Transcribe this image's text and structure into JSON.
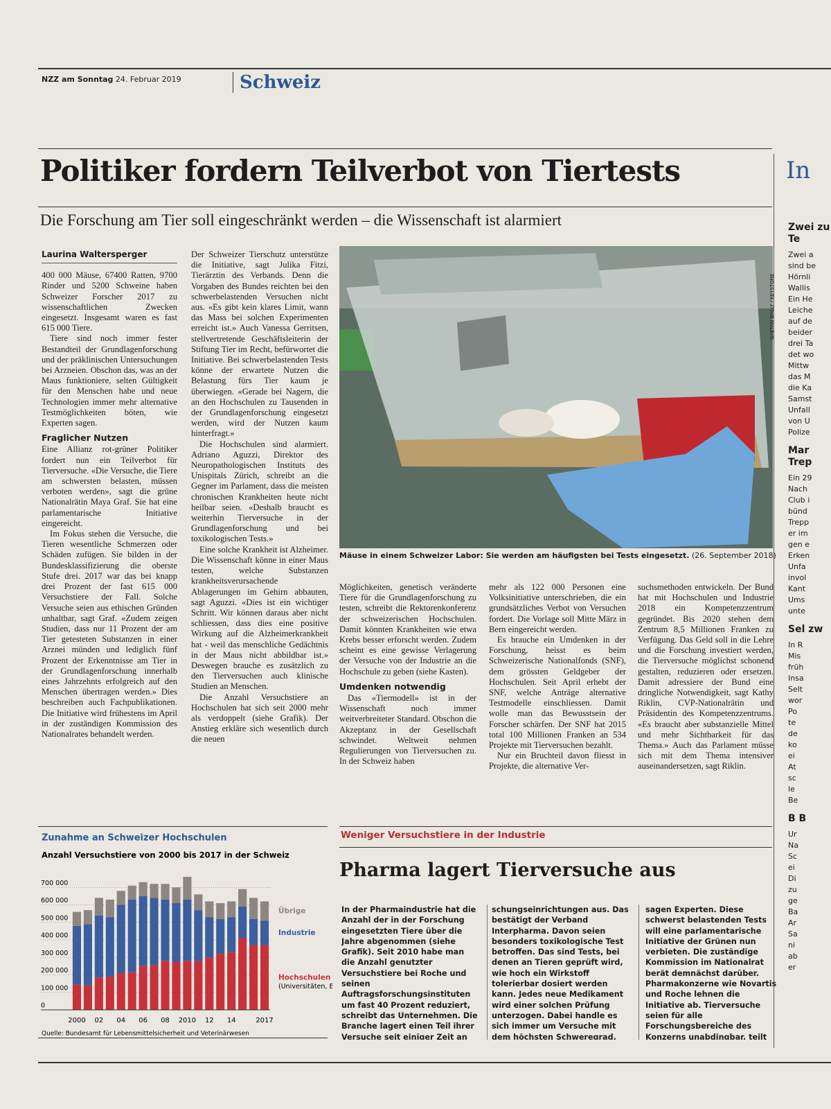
{
  "header": {
    "paper": "NZZ am Sonntag",
    "date": "24. Februar 2019",
    "section": "Schweiz"
  },
  "article": {
    "title": "Politiker fordern Teilverbot von Tiertests",
    "subtitle": "Die Forschung am Tier soll eingeschränkt werden – die Wissenschaft ist alarmiert",
    "author": "Laurina Waltersperger",
    "photo_credit": "GAETAN BALLY / KEYSTONE",
    "caption": "Mäuse in einem Schweizer Labor: Sie werden am häufigsten bei Tests eingesetzt.",
    "caption_date": "(26. September 2018)",
    "columns": [
      [
        {
          "text": "400 000 Mäuse, 67400 Ratten, 9700 Rinder und 5200 Schweine haben Schweizer Forscher 2017 zu wissenschaftlichen Zwecken eingesetzt. Insgesamt waren es fast 615 000 Tiere."
        },
        {
          "text": "Tiere sind noch immer fester Bestandteil der Grundlagenforschung und der präklinischen Untersuchungen bei Arzneien. Obschon das, was an der Maus funktioniere, selten Gültigkeit für den Menschen habe und neue Technologien immer mehr alternative Testmöglichkeiten böten, wie Experten sagen."
        },
        {
          "subhead": "Fraglicher Nutzen"
        },
        {
          "text": "Eine Allianz rot-grüner Politiker fordert nun ein Teilverbot für Tierversuche. «Die Versuche, die Tiere am schwersten belasten, müssen verboten werden», sagt die grüne Nationalrätin Maya Graf. Sie hat eine parlamentarische Initiative eingereicht."
        },
        {
          "text": "Im Fokus stehen die Versuche, die Tieren wesentliche Schmerzen oder Schäden zufügen. Sie bilden in der Bundesklassifizierung die oberste Stufe drei. 2017 war das bei knapp drei Prozent der fast 615 000 Versuchstiere der Fall. Solche Versuche seien aus ethischen Gründen unhaltbar, sagt Graf. «Zudem zeigen Studien, dass nur 11 Prozent der am Tier getesteten Substanzen in einer Arznei münden und lediglich fünf Prozent der Erkenntnisse am Tier in der Grundlagenforschung innerhalb eines Jahrzehnts erfolgreich auf den Menschen übertragen werden.» Dies beschreiben auch Fachpublikationen. Die Initiative wird frühestens im April in der zuständigen Kommission des Nationalrates behandelt werden."
        }
      ],
      [
        {
          "text": "Der Schweizer Tierschutz unterstütze die Initiative, sagt Julika Fitzi, Tierärztin des Verbands. Denn die Vorgaben des Bundes reichten bei den schwerbelastenden Versuchen nicht aus. «Es gibt kein klares Limit, wann das Mass bei solchen Experimenten erreicht ist.» Auch Vanessa Gerritsen, stellvertretende Geschäftsleiterin der Stiftung Tier im Recht, befürwortet die Initiative. Bei schwerbelastenden Tests könne der erwartete Nutzen die Belastung fürs Tier kaum je überwiegen. «Gerade bei Nagern, die an den Hochschulen zu Tausenden in der Grundlagenforschung eingesetzt werden, wird der Nutzen kaum hinterfragt.»"
        },
        {
          "text": "Die Hochschulen sind alarmiert. Adriano Aguzzi, Direktor des Neuropathologischen Instituts des Unispitals Zürich, schreibt an die Gegner im Parlament, dass die meisten chronischen Krankheiten heute nicht heilbar seien. «Deshalb braucht es weiterhin Tierversuche in der Grundlagenforschung und bei toxikologischen Tests.»"
        },
        {
          "text": "Eine solche Krankheit ist Alzheimer. Die Wissenschaft könne in einer Maus testen, welche Substanzen krankheitsverursachende Ablagerungen im Gehirn abbauten, sagt Aguzzi. «Dies ist ein wichtiger Schritt. Wir können daraus aber nicht schliessen, dass dies eine positive Wirkung auf die Alzheimerkrankheit hat - weil das menschliche Gedächtnis in der Maus nicht abbildbar ist.» Deswegen brauche es zusätzlich zu den Tierversuchen auch klinische Studien an Menschen."
        },
        {
          "text": "Die Anzahl Versuchstiere an Hochschulen hat sich seit 2000 mehr als verdoppelt (siehe Grafik). Der Anstieg erkläre sich wesentlich durch die neuen"
        }
      ],
      [
        {
          "text": "Möglichkeiten, genetisch veränderte Tiere für die Grundlagenforschung zu testen, schreibt die Rektorenkonferenz der schweizerischen Hochschulen. Damit könnten Krankheiten wie etwa Krebs besser erforscht werden. Zudem scheint es eine gewisse Verlagerung der Versuche von der Industrie an die Hochschule zu geben (siehe Kasten)."
        },
        {
          "subhead": "Umdenken notwendig"
        },
        {
          "text": "Das «Tiermodell» ist in der Wissenschaft noch immer weitverbreiteter Standard. Obschon die Akzeptanz in der Gesellschaft schwindet. Weltweit nehmen Regulierungen von Tierversuchen zu. In der Schweiz haben"
        }
      ],
      [
        {
          "text": "mehr als 122 000 Personen eine Volksinitiative unterschrieben, die ein grundsätzliches Verbot von Versuchen fordert. Die Vorlage soll Mitte März in Bern eingereicht werden."
        },
        {
          "text": "Es brauche ein Umdenken in der Forschung, heisst es beim Schweizerische Nationalfonds (SNF), dem grössten Geldgeber der Hochschulen. Seit April erhebt der SNF, welche Anträge alternative Testmodelle einschliessen. Damit wolle man das Bewusstsein der Forscher schärfen. Der SNF hat 2015 total 100 Millionen Franken an 534 Projekte mit Tierversuchen bezahlt."
        },
        {
          "text": "Nur ein Bruchteil davon fliesst in Projekte, die alternative Ver-"
        }
      ],
      [
        {
          "text": "suchsmethoden entwickeln. Der Bund hat mit Hochschulen und Industrie 2018 ein Kompetenzzentrum gegründet. Bis 2020 stehen dem Zentrum 8,5 Millionen Franken zu Verfügung. Das Geld soll in die Lehre und die Forschung investiert werden, die Tierversuche möglichst schonend gestalten, reduzieren oder ersetzen. Damit adressiere der Bund eine dringliche Notwendigkeit, sagt Kathy Riklin, CVP-Nationalrätin und Präsidentin des Kompetenzzentrums. «Es braucht aber substanzielle Mittel und mehr Sichtbarkeit für das Thema.» Auch das Parlament müsse sich mit dem Thema intensiver auseinandersetzen, sagt Riklin."
        }
      ]
    ]
  },
  "box": {
    "kicker": "Weniger Versuchstiere in der Industrie",
    "title": "Pharma lagert Tierversuche aus",
    "columns": [
      "In der Pharmaindustrie hat die Anzahl der in der Forschung eingesetzten Tiere über die Jahre abgenommen (siehe Grafik). Seit 2010 habe man die Anzahl genutzter Versuchstiere bei Roche und seinen Auftragsforschungsinstituten um fast 40 Prozent reduziert, schreibt das Unternehmen. Die Branche lagert einen Teil ihrer Versuche seit einiger Zeit an externe For-",
      "schungseinrichtungen aus. Das bestätigt der Verband Interpharma. Davon seien besonders toxikologische Test betroffen. Das sind Tests, bei denen an Tieren geprüft wird, wie hoch ein Wirkstoff tolerierbar dosiert werden kann. Jedes neue Medikament wird einer solchen Prüfung unterzogen. Dabei handle es sich immer um Versuche mit dem höchsten Schweregrad,",
      "sagen Experten. Diese schwerst belastenden Tests will eine parlamentarische Initiative der Grünen nun verbieten. Die zuständige Kommission im Nationalrat berät demnächst darüber. Pharmakonzerne wie Novartis und Roche lehnen die Initiative ab. Tierversuche seien für alle Forschungsbereiche des Konzerns unabdingbar, teilt Roche mit. (wal.)"
    ]
  },
  "sidebar": {
    "title": "In",
    "blocks": [
      {
        "heading": "Zwei zu Te",
        "lines": [
          "Zwei a",
          "sind be",
          "Hörnli",
          "Wallis",
          "Ein He",
          "Leiche",
          "auf de",
          "beider",
          "drei Ta",
          "det wo",
          "Mittw",
          "das M",
          "die Ka",
          "Samst",
          "Unfall",
          "von U",
          "Polize"
        ]
      },
      {
        "heading": "Mar Trep",
        "lines": [
          "Ein 29",
          "Nach",
          "Club i",
          "bünd",
          "Trepp",
          "er im",
          "gen e",
          "Erken",
          "Unfa",
          "invol",
          "Kant",
          "Ums",
          "unte"
        ]
      },
      {
        "heading": "Sel zw",
        "lines": [
          "In R",
          "Mis",
          "früh",
          "Insa",
          "Selt",
          "wor",
          "Po",
          "te",
          "de",
          "ko",
          "ei",
          "At",
          "sc",
          "le",
          "Be"
        ]
      },
      {
        "heading": "B B",
        "lines": [
          "Ur",
          "Na",
          "Sc",
          "ei",
          "Di",
          "zu",
          "ge",
          "Ba",
          "Ar",
          "Sa",
          "ni",
          "ab",
          "er"
        ]
      }
    ]
  },
  "chart_data": {
    "type": "bar",
    "stacked": true,
    "title": "Zunahme an Schweizer Hochschulen",
    "subtitle": "Anzahl Versuchstiere von 2000 bis 2017 in der Schweiz",
    "source": "Quelle: Bundesamt für Lebensmittelsicherheit und Veterinärwesen",
    "categories": [
      "2000",
      null,
      "02",
      null,
      "04",
      null,
      "06",
      null,
      "08",
      null,
      "2010",
      null,
      "12",
      null,
      "14",
      null,
      null,
      "2017"
    ],
    "series": [
      {
        "name": "Hochschulen",
        "note": "(Universitäten, ETH, Spitäler)",
        "color": "#c7323a",
        "values": [
          145000,
          140000,
          185000,
          190000,
          210000,
          215000,
          250000,
          255000,
          280000,
          275000,
          280000,
          280000,
          300000,
          320000,
          330000,
          410000,
          370000,
          370000
        ]
      },
      {
        "name": "Industrie",
        "color": "#3b5e9e",
        "values": [
          335000,
          350000,
          355000,
          340000,
          390000,
          415000,
          400000,
          385000,
          350000,
          335000,
          350000,
          290000,
          230000,
          200000,
          200000,
          180000,
          150000,
          140000
        ]
      },
      {
        "name": "Übrige",
        "color": "#8d8580",
        "values": [
          80000,
          80000,
          100000,
          100000,
          80000,
          80000,
          80000,
          80000,
          90000,
          90000,
          130000,
          90000,
          90000,
          90000,
          90000,
          100000,
          120000,
          110000
        ]
      }
    ],
    "ylim": [
      0,
      800000
    ],
    "yticks": [
      0,
      {
        "value": 100000,
        "label": "100 000"
      },
      {
        "value": 200000,
        "label": "200 000"
      },
      {
        "value": 300000,
        "label": "300 000"
      },
      {
        "value": 400000,
        "label": "400 000"
      },
      {
        "value": 500000,
        "label": "500 000"
      },
      {
        "value": 600000,
        "label": "600 000"
      },
      {
        "value": 700000,
        "label": "700 000"
      }
    ],
    "grid": true
  }
}
